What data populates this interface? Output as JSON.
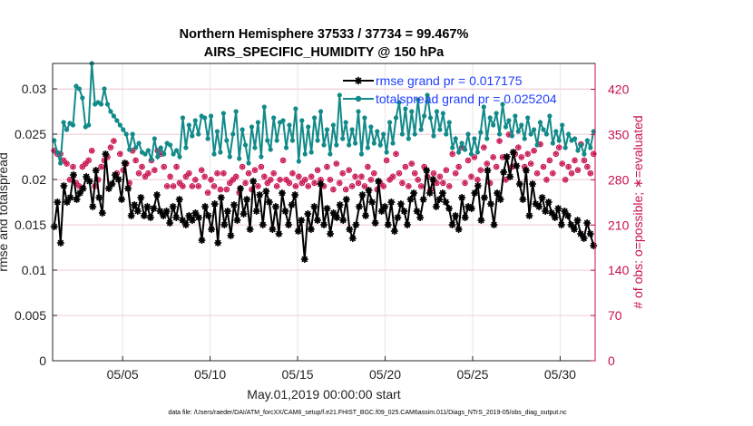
{
  "chart_data": {
    "type": "line",
    "title": "Northern Hemisphere 37533 / 37734 = 99.467%",
    "subtitle": "AIRS_SPECIFIC_HUMIDITY @ 150 hPa",
    "xlabel": "May.01,2019 00:00:00 start",
    "ylabel": "rmse and totalspread",
    "ylabel_right": "# of obs: o=possible; ∗=evaluated",
    "x_start_day": 1,
    "x_end_day": 32,
    "x_ticks": [
      {
        "day": 5,
        "label": "05/05"
      },
      {
        "day": 10,
        "label": "05/10"
      },
      {
        "day": 15,
        "label": "05/15"
      },
      {
        "day": 20,
        "label": "05/20"
      },
      {
        "day": 25,
        "label": "05/25"
      },
      {
        "day": 30,
        "label": "05/30"
      }
    ],
    "ylim": [
      0,
      0.0328
    ],
    "y_ticks": [
      "0",
      "0.005",
      "0.01",
      "0.015",
      "0.02",
      "0.025",
      "0.03"
    ],
    "ylim_right": [
      0,
      460
    ],
    "y_ticks_right": [
      "0",
      "70",
      "140",
      "210",
      "280",
      "350",
      "420"
    ],
    "grid": true,
    "legend_position": "top-right",
    "series": [
      {
        "name": "rmse grand pr = 0.017175",
        "color": "#000000",
        "marker": "asterisk",
        "axis": "left",
        "values": [
          0.0148,
          0.0175,
          0.013,
          0.0193,
          0.0175,
          0.018,
          0.0205,
          0.0178,
          0.0185,
          0.019,
          0.0203,
          0.0198,
          0.017,
          0.021,
          0.018,
          0.0163,
          0.0228,
          0.019,
          0.0195,
          0.0205,
          0.02,
          0.0178,
          0.0218,
          0.019,
          0.016,
          0.0172,
          0.0165,
          0.018,
          0.016,
          0.017,
          0.0158,
          0.0168,
          0.0183,
          0.0165,
          0.016,
          0.0165,
          0.0152,
          0.017,
          0.0158,
          0.0178,
          0.0155,
          0.015,
          0.016,
          0.0155,
          0.0163,
          0.0158,
          0.0133,
          0.017,
          0.016,
          0.0145,
          0.0173,
          0.013,
          0.018,
          0.015,
          0.0165,
          0.0138,
          0.0172,
          0.0155,
          0.019,
          0.0162,
          0.0178,
          0.0145,
          0.0198,
          0.0165,
          0.0183,
          0.015,
          0.0187,
          0.0175,
          0.0145,
          0.017,
          0.014,
          0.0185,
          0.0165,
          0.015,
          0.0172,
          0.0183,
          0.0143,
          0.0155,
          0.0112,
          0.0162,
          0.0145,
          0.017,
          0.0155,
          0.0195,
          0.015,
          0.0168,
          0.014,
          0.0163,
          0.0158,
          0.0172,
          0.0155,
          0.0178,
          0.0145,
          0.0135,
          0.015,
          0.017,
          0.0183,
          0.016,
          0.0188,
          0.0175,
          0.0152,
          0.0198,
          0.0165,
          0.017,
          0.015,
          0.0175,
          0.0143,
          0.0158,
          0.0173,
          0.0165,
          0.015,
          0.0178,
          0.0185,
          0.0165,
          0.0158,
          0.0178,
          0.021,
          0.0185,
          0.02,
          0.017,
          0.0178,
          0.0185,
          0.0175,
          0.0168,
          0.015,
          0.016,
          0.0145,
          0.018,
          0.0158,
          0.017,
          0.0168,
          0.0185,
          0.0193,
          0.0155,
          0.018,
          0.021,
          0.0173,
          0.015,
          0.0185,
          0.0178,
          0.0208,
          0.0225,
          0.0203,
          0.023,
          0.0215,
          0.0195,
          0.0178,
          0.021,
          0.016,
          0.0195,
          0.0173,
          0.017,
          0.018,
          0.0165,
          0.0175,
          0.0163,
          0.0158,
          0.0168,
          0.015,
          0.0165,
          0.016,
          0.015,
          0.0145,
          0.0155,
          0.014,
          0.0135,
          0.0152,
          0.014,
          0.0127
        ]
      },
      {
        "name": "totalspread grand pr = 0.025204",
        "color": "#128a8a",
        "marker": "dot",
        "axis": "left",
        "values": [
          0.0243,
          0.023,
          0.0218,
          0.0263,
          0.0255,
          0.0262,
          0.026,
          0.0303,
          0.03,
          0.029,
          0.0258,
          0.026,
          0.0328,
          0.0283,
          0.0285,
          0.0283,
          0.03,
          0.0283,
          0.0275,
          0.027,
          0.0265,
          0.026,
          0.0255,
          0.025,
          0.0233,
          0.025,
          0.0235,
          0.024,
          0.023,
          0.0228,
          0.0232,
          0.0222,
          0.0245,
          0.0225,
          0.0235,
          0.0228,
          0.024,
          0.0238,
          0.0228,
          0.0232,
          0.0225,
          0.0268,
          0.0235,
          0.026,
          0.0248,
          0.0265,
          0.025,
          0.027,
          0.0268,
          0.0245,
          0.027,
          0.0228,
          0.0253,
          0.023,
          0.0273,
          0.0243,
          0.0225,
          0.025,
          0.0275,
          0.0223,
          0.0255,
          0.0238,
          0.0218,
          0.0258,
          0.0235,
          0.0263,
          0.0225,
          0.028,
          0.0243,
          0.0233,
          0.0268,
          0.0243,
          0.0263,
          0.0265,
          0.0235,
          0.026,
          0.0243,
          0.0278,
          0.022,
          0.0265,
          0.0228,
          0.0258,
          0.023,
          0.0268,
          0.0243,
          0.0275,
          0.0238,
          0.0255,
          0.0228,
          0.026,
          0.0238,
          0.0293,
          0.0245,
          0.0263,
          0.0238,
          0.0255,
          0.024,
          0.0275,
          0.0228,
          0.0268,
          0.0235,
          0.0258,
          0.024,
          0.0253,
          0.0238,
          0.025,
          0.023,
          0.0263,
          0.024,
          0.0268,
          0.0285,
          0.025,
          0.0278,
          0.0245,
          0.0275,
          0.025,
          0.0288,
          0.0255,
          0.027,
          0.0293,
          0.0268,
          0.0248,
          0.0275,
          0.0255,
          0.0273,
          0.025,
          0.0263,
          0.0235,
          0.0245,
          0.023,
          0.024,
          0.0233,
          0.025,
          0.0228,
          0.0245,
          0.023,
          0.0252,
          0.028,
          0.0245,
          0.0268,
          0.026,
          0.0273,
          0.025,
          0.0283,
          0.0258,
          0.0265,
          0.0248,
          0.027,
          0.0253,
          0.026,
          0.0245,
          0.0268,
          0.025,
          0.0255,
          0.0238,
          0.0263,
          0.0255,
          0.025,
          0.027,
          0.024,
          0.0253,
          0.0243,
          0.026,
          0.0235,
          0.025,
          0.0243,
          0.0245,
          0.0232,
          0.0238,
          0.0228,
          0.0243,
          0.0235,
          0.0253
        ]
      },
      {
        "name": "obs possible",
        "color": "#c8104f",
        "marker": "circle",
        "axis": "right",
        "values": [
          325,
          320,
          320,
          310,
          305,
          280,
          300,
          275,
          270,
          300,
          305,
          310,
          325,
          270,
          280,
          300,
          310,
          315,
          330,
          340,
          290,
          320,
          295,
          305,
          275,
          325,
          310,
          290,
          300,
          285,
          290,
          310,
          295,
          325,
          320,
          300,
          270,
          285,
          270,
          300,
          275,
          270,
          285,
          290,
          270,
          280,
          270,
          295,
          285,
          260,
          280,
          270,
          290,
          265,
          290,
          265,
          275,
          280,
          285,
          260,
          300,
          275,
          290,
          265,
          295,
          270,
          300,
          285,
          275,
          280,
          290,
          270,
          280,
          310,
          280,
          275,
          290,
          270,
          285,
          275,
          280,
          270,
          285,
          275,
          295,
          280,
          270,
          300,
          280,
          265,
          305,
          275,
          290,
          265,
          295,
          270,
          285,
          275,
          285,
          270,
          300,
          280,
          290,
          265,
          275,
          270,
          310,
          280,
          285,
          320,
          290,
          275,
          300,
          270,
          305,
          290,
          280,
          270,
          300,
          285,
          265,
          290,
          275,
          285,
          275,
          295,
          270,
          320,
          290,
          300,
          330,
          275,
          310,
          285,
          315,
          280,
          295,
          330,
          305,
          275,
          315,
          300,
          340,
          315,
          280,
          350,
          300,
          320,
          330,
          315,
          300,
          320,
          305,
          325,
          290,
          335,
          300,
          280,
          310,
          290,
          320,
          330,
          305,
          280,
          300,
          290,
          310,
          295,
          335,
          310,
          300,
          290,
          320
        ]
      },
      {
        "name": "obs evaluated",
        "color": "#c8104f",
        "marker": "asterisk",
        "axis": "right",
        "values": [
          325,
          320,
          320,
          310,
          305,
          280,
          300,
          275,
          270,
          300,
          305,
          310,
          325,
          270,
          280,
          300,
          310,
          315,
          330,
          340,
          290,
          320,
          295,
          305,
          275,
          325,
          310,
          290,
          300,
          285,
          290,
          310,
          295,
          325,
          320,
          300,
          270,
          285,
          270,
          300,
          275,
          270,
          285,
          290,
          270,
          280,
          270,
          295,
          285,
          260,
          280,
          270,
          290,
          265,
          290,
          265,
          275,
          280,
          285,
          260,
          300,
          275,
          290,
          265,
          295,
          270,
          300,
          285,
          275,
          280,
          290,
          270,
          280,
          310,
          280,
          275,
          290,
          270,
          285,
          275,
          280,
          270,
          285,
          275,
          295,
          280,
          270,
          300,
          280,
          265,
          305,
          275,
          290,
          265,
          295,
          270,
          285,
          275,
          285,
          270,
          300,
          280,
          290,
          265,
          275,
          270,
          310,
          280,
          285,
          320,
          290,
          275,
          300,
          270,
          305,
          290,
          280,
          270,
          300,
          285,
          265,
          290,
          275,
          285,
          275,
          295,
          270,
          320,
          290,
          300,
          330,
          275,
          310,
          285,
          315,
          280,
          295,
          330,
          305,
          275,
          315,
          300,
          340,
          315,
          280,
          350,
          300,
          320,
          330,
          315,
          300,
          320,
          305,
          325,
          290,
          335,
          300,
          280,
          310,
          290,
          320,
          330,
          305,
          280,
          300,
          290,
          310,
          295,
          335,
          310,
          300,
          290,
          320
        ]
      }
    ],
    "legend": [
      {
        "label": "rmse grand pr = 0.017175",
        "color": "#000000",
        "marker": "asterisk"
      },
      {
        "label": "totalspread grand pr = 0.025204",
        "color": "#128a8a",
        "marker": "dot"
      }
    ],
    "footer": "data file: /Users/raeder/DAI/ATM_forcXX/CAM6_setup/f.e21.FHIST_BGC.f09_025.CAM6assim.011/Diags_NTrS_2019-05/obs_diag_output.nc"
  }
}
